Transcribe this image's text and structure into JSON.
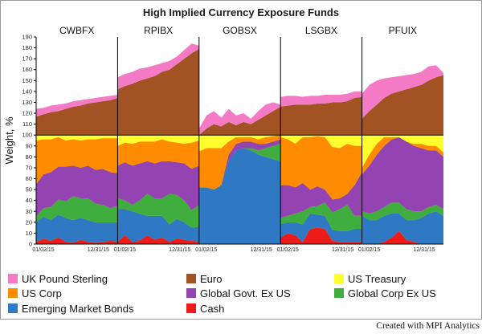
{
  "chart_data": {
    "type": "area",
    "title": "High Implied Currency Exposure Funds",
    "ylabel": "Weight, %",
    "ylim": [
      0,
      190
    ],
    "yticks": [
      0,
      10,
      20,
      30,
      40,
      50,
      60,
      70,
      80,
      90,
      100,
      110,
      120,
      130,
      140,
      150,
      160,
      170,
      180,
      190
    ],
    "x_tick_labels": [
      "01/02/15",
      "12/31/15"
    ],
    "colors": {
      "UK Pound Sterling": "#f47ac6",
      "Euro": "#a35224",
      "US Treasury": "#ffff2e",
      "US Corp": "#ff8c00",
      "Global Govt. Ex US": "#9443b3",
      "Global Corp Ex US": "#3fae3f",
      "Emerging Market Bonds": "#2f78c4",
      "Cash": "#ee1b1b"
    },
    "legend": [
      "UK Pound Sterling",
      "Euro",
      "US Treasury",
      "US Corp",
      "Global Govt. Ex US",
      "Global Corp Ex US",
      "Emerging Market Bonds",
      "Cash"
    ],
    "funds": [
      {
        "name": "CWBFX",
        "euro_top": [
          117,
          119,
          121,
          122,
          124,
          126,
          127,
          129,
          130,
          131,
          132,
          134
        ],
        "gbp_top": [
          124,
          125,
          127,
          128,
          129,
          131,
          132,
          133,
          134,
          135,
          136,
          137
        ],
        "stacks": {
          "Cash": [
            2,
            5,
            3,
            6,
            2,
            1,
            4,
            2,
            1,
            2,
            3,
            2
          ],
          "Emerging Market Bonds": [
            18,
            20,
            19,
            21,
            22,
            21,
            20,
            20,
            19,
            18,
            17,
            18
          ],
          "Global Corp Ex US": [
            5,
            8,
            12,
            14,
            15,
            22,
            18,
            20,
            17,
            16,
            13,
            15
          ],
          "Global Govt. Ex US": [
            30,
            31,
            32,
            30,
            32,
            28,
            28,
            30,
            31,
            33,
            33,
            30
          ],
          "US Corp": [
            40,
            32,
            30,
            27,
            24,
            24,
            25,
            24,
            28,
            28,
            31,
            32
          ]
        }
      },
      {
        "name": "RPIBX",
        "euro_top": [
          142,
          145,
          147,
          150,
          152,
          154,
          158,
          160,
          165,
          170,
          175,
          179
        ],
        "gbp_top": [
          153,
          156,
          158,
          161,
          162,
          164,
          166,
          168,
          172,
          178,
          184,
          182
        ],
        "stacks": {
          "Cash": [
            2,
            8,
            2,
            3,
            8,
            4,
            6,
            2,
            5,
            4,
            3,
            2
          ],
          "Emerging Market Bonds": [
            30,
            24,
            28,
            25,
            18,
            22,
            20,
            16,
            18,
            16,
            12,
            14
          ],
          "Global Corp Ex US": [
            10,
            8,
            6,
            12,
            20,
            16,
            16,
            28,
            22,
            20,
            16,
            20
          ],
          "Global Govt. Ex US": [
            30,
            35,
            36,
            34,
            30,
            32,
            34,
            30,
            30,
            34,
            38,
            36
          ],
          "US Corp": [
            18,
            18,
            20,
            20,
            18,
            20,
            20,
            18,
            18,
            18,
            24,
            23
          ]
        }
      },
      {
        "name": "GOBSX",
        "euro_top": [
          100,
          106,
          110,
          108,
          112,
          109,
          112,
          110,
          114,
          118,
          122,
          126
        ],
        "gbp_top": [
          106,
          118,
          122,
          116,
          124,
          118,
          120,
          115,
          122,
          128,
          130,
          128
        ],
        "stacks": {
          "Cash": [
            0,
            0,
            0,
            0,
            0,
            0,
            0,
            0,
            0,
            0,
            0,
            0
          ],
          "Emerging Market Bonds": [
            52,
            52,
            50,
            54,
            76,
            86,
            88,
            86,
            82,
            80,
            78,
            76
          ],
          "Global Corp Ex US": [
            0,
            0,
            0,
            0,
            0,
            0,
            0,
            2,
            4,
            8,
            12,
            16
          ],
          "Global Govt. Ex US": [
            0,
            0,
            0,
            0,
            6,
            6,
            6,
            6,
            6,
            4,
            4,
            4
          ],
          "US Corp": [
            33,
            36,
            38,
            34,
            12,
            6,
            4,
            4,
            4,
            6,
            5,
            4
          ]
        }
      },
      {
        "name": "LSGBX",
        "euro_top": [
          126,
          127,
          128,
          128,
          128,
          129,
          129,
          130,
          130,
          131,
          134,
          135
        ],
        "gbp_top": [
          135,
          136,
          136,
          135,
          136,
          136,
          137,
          137,
          137,
          138,
          140,
          140
        ],
        "stacks": {
          "Cash": [
            6,
            10,
            8,
            2,
            14,
            15,
            14,
            3,
            2,
            2,
            2,
            2
          ],
          "Emerging Market Bonds": [
            12,
            10,
            12,
            16,
            14,
            12,
            12,
            10,
            10,
            10,
            12,
            12
          ],
          "Global Corp Ex US": [
            6,
            6,
            8,
            12,
            6,
            8,
            12,
            16,
            20,
            24,
            12,
            12
          ],
          "Global Govt. Ex US": [
            30,
            28,
            24,
            26,
            16,
            18,
            12,
            12,
            10,
            10,
            28,
            40
          ],
          "US Corp": [
            44,
            42,
            40,
            42,
            48,
            46,
            48,
            48,
            46,
            46,
            36,
            24
          ]
        }
      },
      {
        "name": "PFUIX",
        "euro_top": [
          115,
          122,
          128,
          134,
          138,
          140,
          142,
          144,
          146,
          150,
          153,
          155
        ],
        "gbp_top": [
          138,
          146,
          150,
          152,
          153,
          154,
          155,
          156,
          158,
          163,
          164,
          157
        ],
        "stacks": {
          "Cash": [
            0,
            0,
            0,
            2,
            6,
            12,
            4,
            2,
            0,
            0,
            0,
            0
          ],
          "Emerging Market Bonds": [
            26,
            22,
            22,
            24,
            22,
            16,
            18,
            20,
            24,
            28,
            30,
            26
          ],
          "Global Corp Ex US": [
            4,
            6,
            8,
            8,
            10,
            10,
            10,
            8,
            6,
            6,
            6,
            6
          ],
          "Global Govt. Ex US": [
            34,
            44,
            52,
            56,
            58,
            60,
            62,
            60,
            58,
            52,
            50,
            48
          ],
          "US Corp": [
            6,
            10,
            10,
            8,
            2,
            0,
            0,
            2,
            4,
            4,
            4,
            4
          ]
        }
      }
    ]
  },
  "footer": {
    "credit": "Created with MPI Analytics"
  }
}
